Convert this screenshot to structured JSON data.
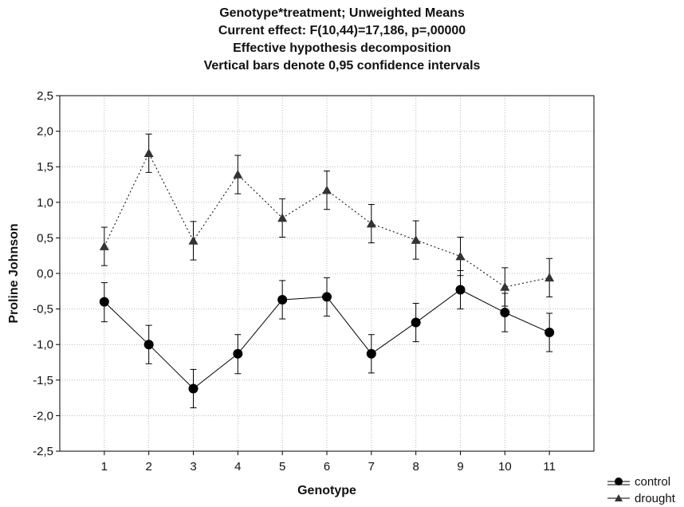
{
  "chart_data": {
    "type": "line",
    "title": [
      "Genotype*treatment; Unweighted Means",
      "Current effect: F(10,44)=17,186, p=,00000",
      "Effective hypothesis decomposition",
      "Vertical bars denote 0,95 confidence intervals"
    ],
    "xlabel": "Genotype",
    "ylabel": "Proline Johnson",
    "categories": [
      "1",
      "2",
      "3",
      "4",
      "5",
      "6",
      "7",
      "8",
      "9",
      "10",
      "11"
    ],
    "ylim": [
      -2.5,
      2.5
    ],
    "yticks": [
      2.5,
      2.0,
      1.5,
      1.0,
      0.5,
      0.0,
      -0.5,
      -1.0,
      -1.5,
      -2.0,
      -2.5
    ],
    "ytick_labels": [
      "2,5",
      "2,0",
      "1,5",
      "1,0",
      "0,5",
      "0,0",
      "-0,5",
      "-1,0",
      "-1,5",
      "-2,0",
      "-2,5"
    ],
    "grid": true,
    "legend_position": "bottom-right",
    "series": [
      {
        "name": "control",
        "marker": "circle",
        "line": "solid",
        "values": [
          -0.4,
          -1.0,
          -1.62,
          -1.13,
          -0.37,
          -0.33,
          -1.13,
          -0.69,
          -0.23,
          -0.55,
          -0.83
        ],
        "ci_low": [
          -0.68,
          -1.27,
          -1.89,
          -1.41,
          -0.64,
          -0.6,
          -1.4,
          -0.96,
          -0.5,
          -0.82,
          -1.1
        ],
        "ci_high": [
          -0.13,
          -0.73,
          -1.35,
          -0.86,
          -0.1,
          -0.06,
          -0.86,
          -0.42,
          0.04,
          -0.28,
          -0.56
        ]
      },
      {
        "name": "drought",
        "marker": "triangle",
        "line": "dotted",
        "values": [
          0.38,
          1.69,
          0.46,
          1.39,
          0.78,
          1.17,
          0.7,
          0.47,
          0.24,
          -0.19,
          -0.06
        ],
        "ci_low": [
          0.11,
          1.42,
          0.19,
          1.12,
          0.51,
          0.9,
          0.43,
          0.2,
          -0.03,
          -0.46,
          -0.33
        ],
        "ci_high": [
          0.65,
          1.96,
          0.73,
          1.66,
          1.05,
          1.44,
          0.97,
          0.74,
          0.51,
          0.08,
          0.21
        ]
      }
    ]
  }
}
